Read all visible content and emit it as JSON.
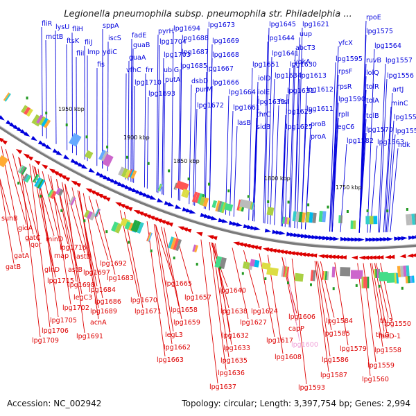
{
  "title": "Legionella pneumophila subsp. pneumophila str. Philadelphia ...",
  "footer": {
    "accession": "Accession: NC_002942",
    "summary": "Topology: circular; Length: 3,397,754 bp; Genes: 2,994"
  },
  "colors": {
    "forward_strand": "#0000dd",
    "reverse_strand": "#dd0000",
    "pseudo_gene": "#f0a0d8",
    "backbone": "#888888",
    "marker": "#229922"
  },
  "ticks": [
    {
      "label": "1950 kbp"
    },
    {
      "label": "1900 kbp"
    },
    {
      "label": "1850 kbp"
    },
    {
      "label": "1800 kbp"
    },
    {
      "label": "1750 kbp"
    }
  ],
  "forward_labels": [
    "fliR",
    "lysU",
    "motB",
    "fliH",
    "sppA",
    "ftsK",
    "fliJ",
    "iscS",
    "fliI",
    "lmp",
    "ydiC",
    "fis",
    "fadE",
    "guaB",
    "guaA",
    "pyrH",
    "lpg1704",
    "lpg1694",
    "lpg1688",
    "lpg1673",
    "lpg1669",
    "lpg1668",
    "lpg1645",
    "lpg1644",
    "lpg1621",
    "uup",
    "rpoE",
    "lpg1575",
    "vfhC",
    "frr",
    "lpg1703",
    "ubiG",
    "lpg1687",
    "lpg1685",
    "lpg1710",
    "putA",
    "lpg1693",
    "dsbD",
    "purM",
    "lpg1667",
    "lpg1666",
    "lpg1664",
    "lpg1651",
    "iolD",
    "lpg1641",
    "lpg1630",
    "abcT3",
    "yqkA",
    "lpg1634",
    "lpg1613",
    "yfcX",
    "lpg1595",
    "rpsF",
    "lpg1564",
    "ruvB",
    "lpg1557",
    "lolQ",
    "lpg1556",
    "lpg1672",
    "lpg1661",
    "iolE",
    "lpg1639",
    "thrC",
    "lasB",
    "sidB",
    "lpg1631",
    "ftsI",
    "lpg1629",
    "lpg1625",
    "lpg1612",
    "lpg1611",
    "proB",
    "proA",
    "rpsR",
    "lpg1590",
    "rplI",
    "legC6",
    "lpg1582",
    "tolR",
    "tolA",
    "tolB",
    "lpg1570",
    "lpg1563",
    "artJ",
    "minC",
    "lpg1552",
    "lpg1551",
    "ndk"
  ],
  "reverse_labels": [
    "suhB",
    "gidA",
    "gatC",
    "qor",
    "gatA",
    "gatB",
    "minD",
    "lpg1716",
    "map",
    "astD",
    "glnD",
    "astB",
    "lpg1715",
    "lpg1697",
    "lpg1692",
    "lpg1698",
    "lpg1683",
    "legC3",
    "lpg1684",
    "lpg1686",
    "lpg1702",
    "lpg1689",
    "lpg1705",
    "acnA",
    "lpg1706",
    "lpg1691",
    "lpg1709",
    "lpg1670",
    "lpg1671",
    "lpg1665",
    "lpg1657",
    "lpg1658",
    "lpg1659",
    "legL3",
    "lpg1662",
    "lpg1663",
    "lpg1640",
    "lpg1638",
    "lpg1632",
    "lpg1633",
    "lpg1635",
    "lpg1636",
    "lpg1637",
    "lpg1624",
    "lpg1627",
    "lpg1617",
    "lpg1606",
    "capP",
    "lpg1600",
    "lpg1608",
    "lpg1593",
    "lpg1584",
    "lpg1585",
    "lpg1586",
    "lpg1587",
    "lpg1579",
    "thi3",
    "thiG",
    "lpg1550",
    "fadD-1",
    "lpg1558",
    "lpg1559",
    "lpg1560"
  ],
  "pseudo_labels": [
    "lpg1600"
  ]
}
